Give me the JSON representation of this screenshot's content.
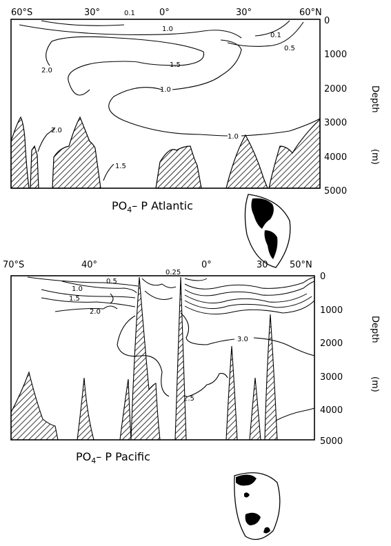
{
  "chart_data": [
    {
      "type": "contour",
      "title": "PO₄– P Atlantic",
      "title_main": "PO",
      "title_sub": "4",
      "title_rest": "– P   Atlantic",
      "ylabel": "Depth",
      "yunit": "(m)",
      "x_ticks": [
        "60°S",
        "30°",
        "0°",
        "30°",
        "60°N"
      ],
      "x_ticks_values": [
        -60,
        -30,
        0,
        30,
        60
      ],
      "y_ticks": [
        "0",
        "1000",
        "2000",
        "3000",
        "4000",
        "5000"
      ],
      "ylim": [
        0,
        5000
      ],
      "xlim": [
        -60,
        60
      ],
      "contour_levels": [
        "0.1",
        "0.1",
        "1.0",
        "0.5",
        "2.0",
        "1.5",
        "1.0",
        "2.0",
        "1.0",
        "1.5"
      ],
      "inset_map": "globe-americas",
      "pattern": "hatched-sea-floor"
    },
    {
      "type": "contour",
      "title": "PO₄– P Pacific",
      "title_main": "PO",
      "title_sub": "4",
      "title_rest": "– P   Pacific",
      "ylabel": "Depth",
      "yunit": "(m)",
      "x_ticks": [
        "70°S",
        "40°",
        "0°",
        "30",
        "50°N"
      ],
      "x_ticks_values": [
        -70,
        -40,
        0,
        30,
        50
      ],
      "y_ticks": [
        "0",
        "1000",
        "2000",
        "3000",
        "4000",
        "5000"
      ],
      "ylim": [
        0,
        5000
      ],
      "xlim": [
        -70,
        50
      ],
      "contour_levels": [
        "0.5",
        "1.0",
        "1.5",
        "2.0",
        "0.25",
        "3.0",
        "2.5"
      ],
      "inset_map": "globe-pacific",
      "pattern": "hatched-sea-floor"
    }
  ]
}
